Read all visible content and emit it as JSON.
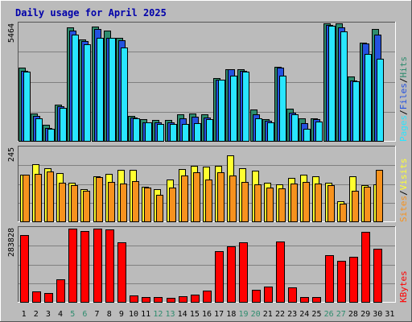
{
  "title": "Daily usage for April 2025",
  "colors": {
    "background": "#bbbbbb",
    "title": "#0000aa",
    "grid": "#808080",
    "pages": "#29e5ff",
    "files": "#2452e0",
    "hits": "#2e8c6e",
    "visits": "#ffff30",
    "sites": "#f7921e",
    "kbytes": "#ff0000",
    "weekend": "#2e8c6e",
    "weekday": "#000000"
  },
  "chart_data": {
    "type": "bar",
    "categories": [
      "1",
      "2",
      "3",
      "4",
      "5",
      "6",
      "7",
      "8",
      "9",
      "10",
      "11",
      "12",
      "13",
      "14",
      "15",
      "16",
      "17",
      "18",
      "19",
      "20",
      "21",
      "22",
      "23",
      "24",
      "25",
      "26",
      "27",
      "28",
      "29",
      "30",
      "31"
    ],
    "weekend_days": [
      "5",
      "6",
      "12",
      "13",
      "19",
      "20",
      "26",
      "27"
    ],
    "panels": [
      {
        "name": "hits-files-pages",
        "ymax_label": "5464",
        "ymax": 5464,
        "legend": [
          "Pages",
          "/",
          "Files",
          "/",
          "Hits"
        ],
        "series": [
          {
            "name": "Hits",
            "values": [
              3440,
              1300,
              770,
              1710,
              5330,
              4740,
              5360,
              5160,
              4830,
              1180,
              1020,
              980,
              970,
              1260,
              1290,
              1230,
              2950,
              3370,
              3350,
              1460,
              1030,
              3480,
              1500,
              1060,
              1060,
              5500,
              5500,
              3010,
              4580,
              5250,
              null
            ]
          },
          {
            "name": "Files",
            "values": [
              3280,
              1180,
              620,
              1610,
              5150,
              4670,
              5240,
              4810,
              4700,
              1080,
              870,
              850,
              850,
              1050,
              1130,
              1080,
              2850,
              3340,
              3270,
              1260,
              930,
              3420,
              1320,
              830,
              1000,
              5420,
              5300,
              2820,
              4560,
              4990,
              null
            ]
          },
          {
            "name": "Pages",
            "values": [
              3230,
              1060,
              560,
              1540,
              4980,
              4530,
              4820,
              4830,
              4370,
              1070,
              870,
              800,
              790,
              810,
              840,
              1020,
              2860,
              3070,
              3230,
              1060,
              860,
              3070,
              1230,
              580,
              890,
              5390,
              5110,
              2790,
              4070,
              3840,
              null
            ]
          }
        ]
      },
      {
        "name": "visits-sites",
        "ymax_label": "245",
        "ymax": 245,
        "legend": [
          "Sites",
          "/",
          "Visits"
        ],
        "series": [
          {
            "name": "Visits",
            "values": [
              157,
              190,
              178,
              162,
              130,
              108,
              150,
              158,
              173,
              173,
              115,
              108,
              140,
              175,
              185,
              183,
              187,
              220,
              178,
              170,
              130,
              124,
              145,
              155,
              150,
              130,
              66,
              150,
              120,
              125,
              null
            ]
          },
          {
            "name": "Sites",
            "values": [
              155,
              160,
              166,
              128,
              121,
              103,
              147,
              133,
              127,
              135,
              114,
              90,
              113,
              154,
              164,
              139,
              164,
              154,
              132,
              125,
              113,
              111,
              127,
              131,
              127,
              121,
              59,
              101,
              115,
              173,
              null
            ]
          }
        ]
      },
      {
        "name": "kbytes",
        "ymax_label": "283828",
        "ymax": 283828,
        "legend": [
          "KBytes"
        ],
        "series": [
          {
            "name": "KBytes",
            "values": [
              258000,
              41000,
              34000,
              87000,
              283828,
              276000,
              283000,
              280000,
              231000,
              24000,
              19000,
              19000,
              17000,
              22000,
              28000,
              45000,
              198000,
              216000,
              232000,
              46000,
              58000,
              234000,
              57000,
              20000,
              20000,
              180000,
              160000,
              174000,
              270000,
              205000,
              null
            ]
          }
        ]
      }
    ]
  }
}
